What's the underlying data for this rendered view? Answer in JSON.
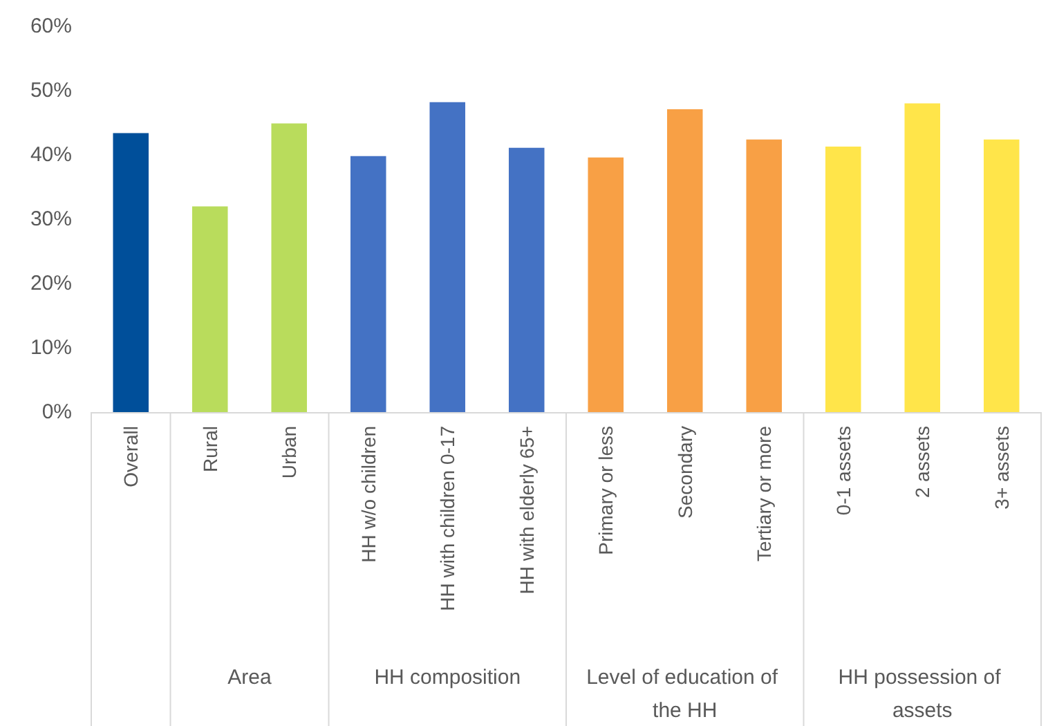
{
  "chart_data": {
    "type": "bar",
    "categories": [
      "Overall",
      "Rural",
      "Urban",
      "HH w/o children",
      "HH with children 0-17",
      "HH with elderly 65+",
      "Primary or less",
      "Secondary",
      "Tertiary or more",
      "0-1 assets",
      "2 assets",
      "3+ assets"
    ],
    "values": [
      43.4,
      32.0,
      44.9,
      39.8,
      48.2,
      41.1,
      39.6,
      47.1,
      42.4,
      41.3,
      48.0,
      42.4
    ],
    "colors": [
      "#004f9a",
      "#b9dc5c",
      "#b9dc5c",
      "#4472c4",
      "#4472c4",
      "#4472c4",
      "#f8a045",
      "#f8a045",
      "#f8a045",
      "#ffe54a",
      "#ffe54a",
      "#ffe54a"
    ],
    "ylim": [
      0,
      60
    ],
    "yticks": [
      {
        "value": 0,
        "label": "0%"
      },
      {
        "value": 10,
        "label": "10%"
      },
      {
        "value": 20,
        "label": "20%"
      },
      {
        "value": 30,
        "label": "30%"
      },
      {
        "value": 40,
        "label": "40%"
      },
      {
        "value": 50,
        "label": "50%"
      },
      {
        "value": 60,
        "label": "60%"
      }
    ],
    "annotations": [
      "Area",
      "HH composition",
      "Level of education of the HH",
      "HH possession of assets"
    ],
    "grid": false
  }
}
